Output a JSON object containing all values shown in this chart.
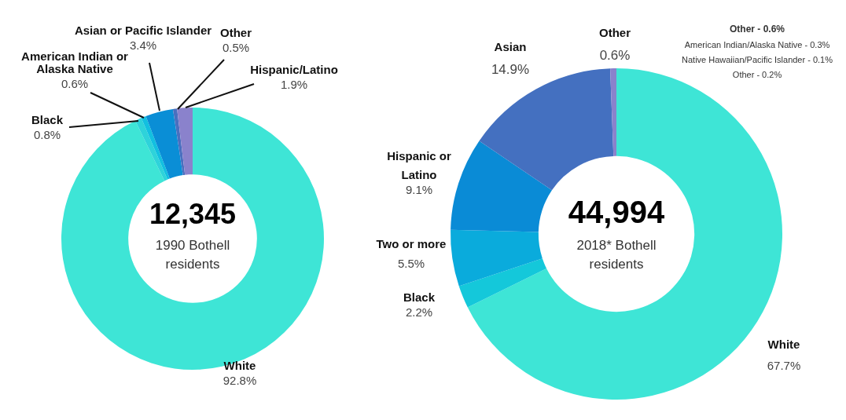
{
  "chart_data": [
    {
      "type": "donut",
      "categories": [
        "White",
        "Black",
        "American Indian or Alaska Native",
        "Asian or Pacific Islander",
        "Other",
        "Hispanic/Latino"
      ],
      "values": [
        92.8,
        0.8,
        0.6,
        3.4,
        0.5,
        1.9
      ],
      "value_labels": [
        "92.8%",
        "0.8%",
        "0.6%",
        "3.4%",
        "0.5%",
        "1.9%"
      ],
      "colors": [
        "#3ee5d6",
        "#2ed3da",
        "#12c0e0",
        "#0a8ed6",
        "#4a6fbf",
        "#8a82cc"
      ],
      "annotations": [
        "12,345",
        "1990 Bothell residents"
      ],
      "legend": false
    },
    {
      "type": "donut",
      "categories": [
        "White",
        "Black",
        "Two or more",
        "Hispanic or Latino",
        "Asian",
        "Other"
      ],
      "values": [
        67.7,
        2.2,
        5.5,
        9.1,
        14.9,
        0.6
      ],
      "value_labels": [
        "67.7%",
        "2.2%",
        "5.5%",
        "9.1%",
        "14.9%",
        "0.6%"
      ],
      "colors": [
        "#3ee5d6",
        "#14c8da",
        "#0aabdc",
        "#0a8bd6",
        "#4470c0",
        "#8a82cc"
      ],
      "annotations": [
        "44,994",
        "2018* Bothell residents",
        "Other - 0.6%",
        "American Indian/Alaska Native - 0.3%",
        "Native Hawaiian/Pacific Islander - 0.1%",
        "Other - 0.2%"
      ],
      "legend": false
    }
  ]
}
